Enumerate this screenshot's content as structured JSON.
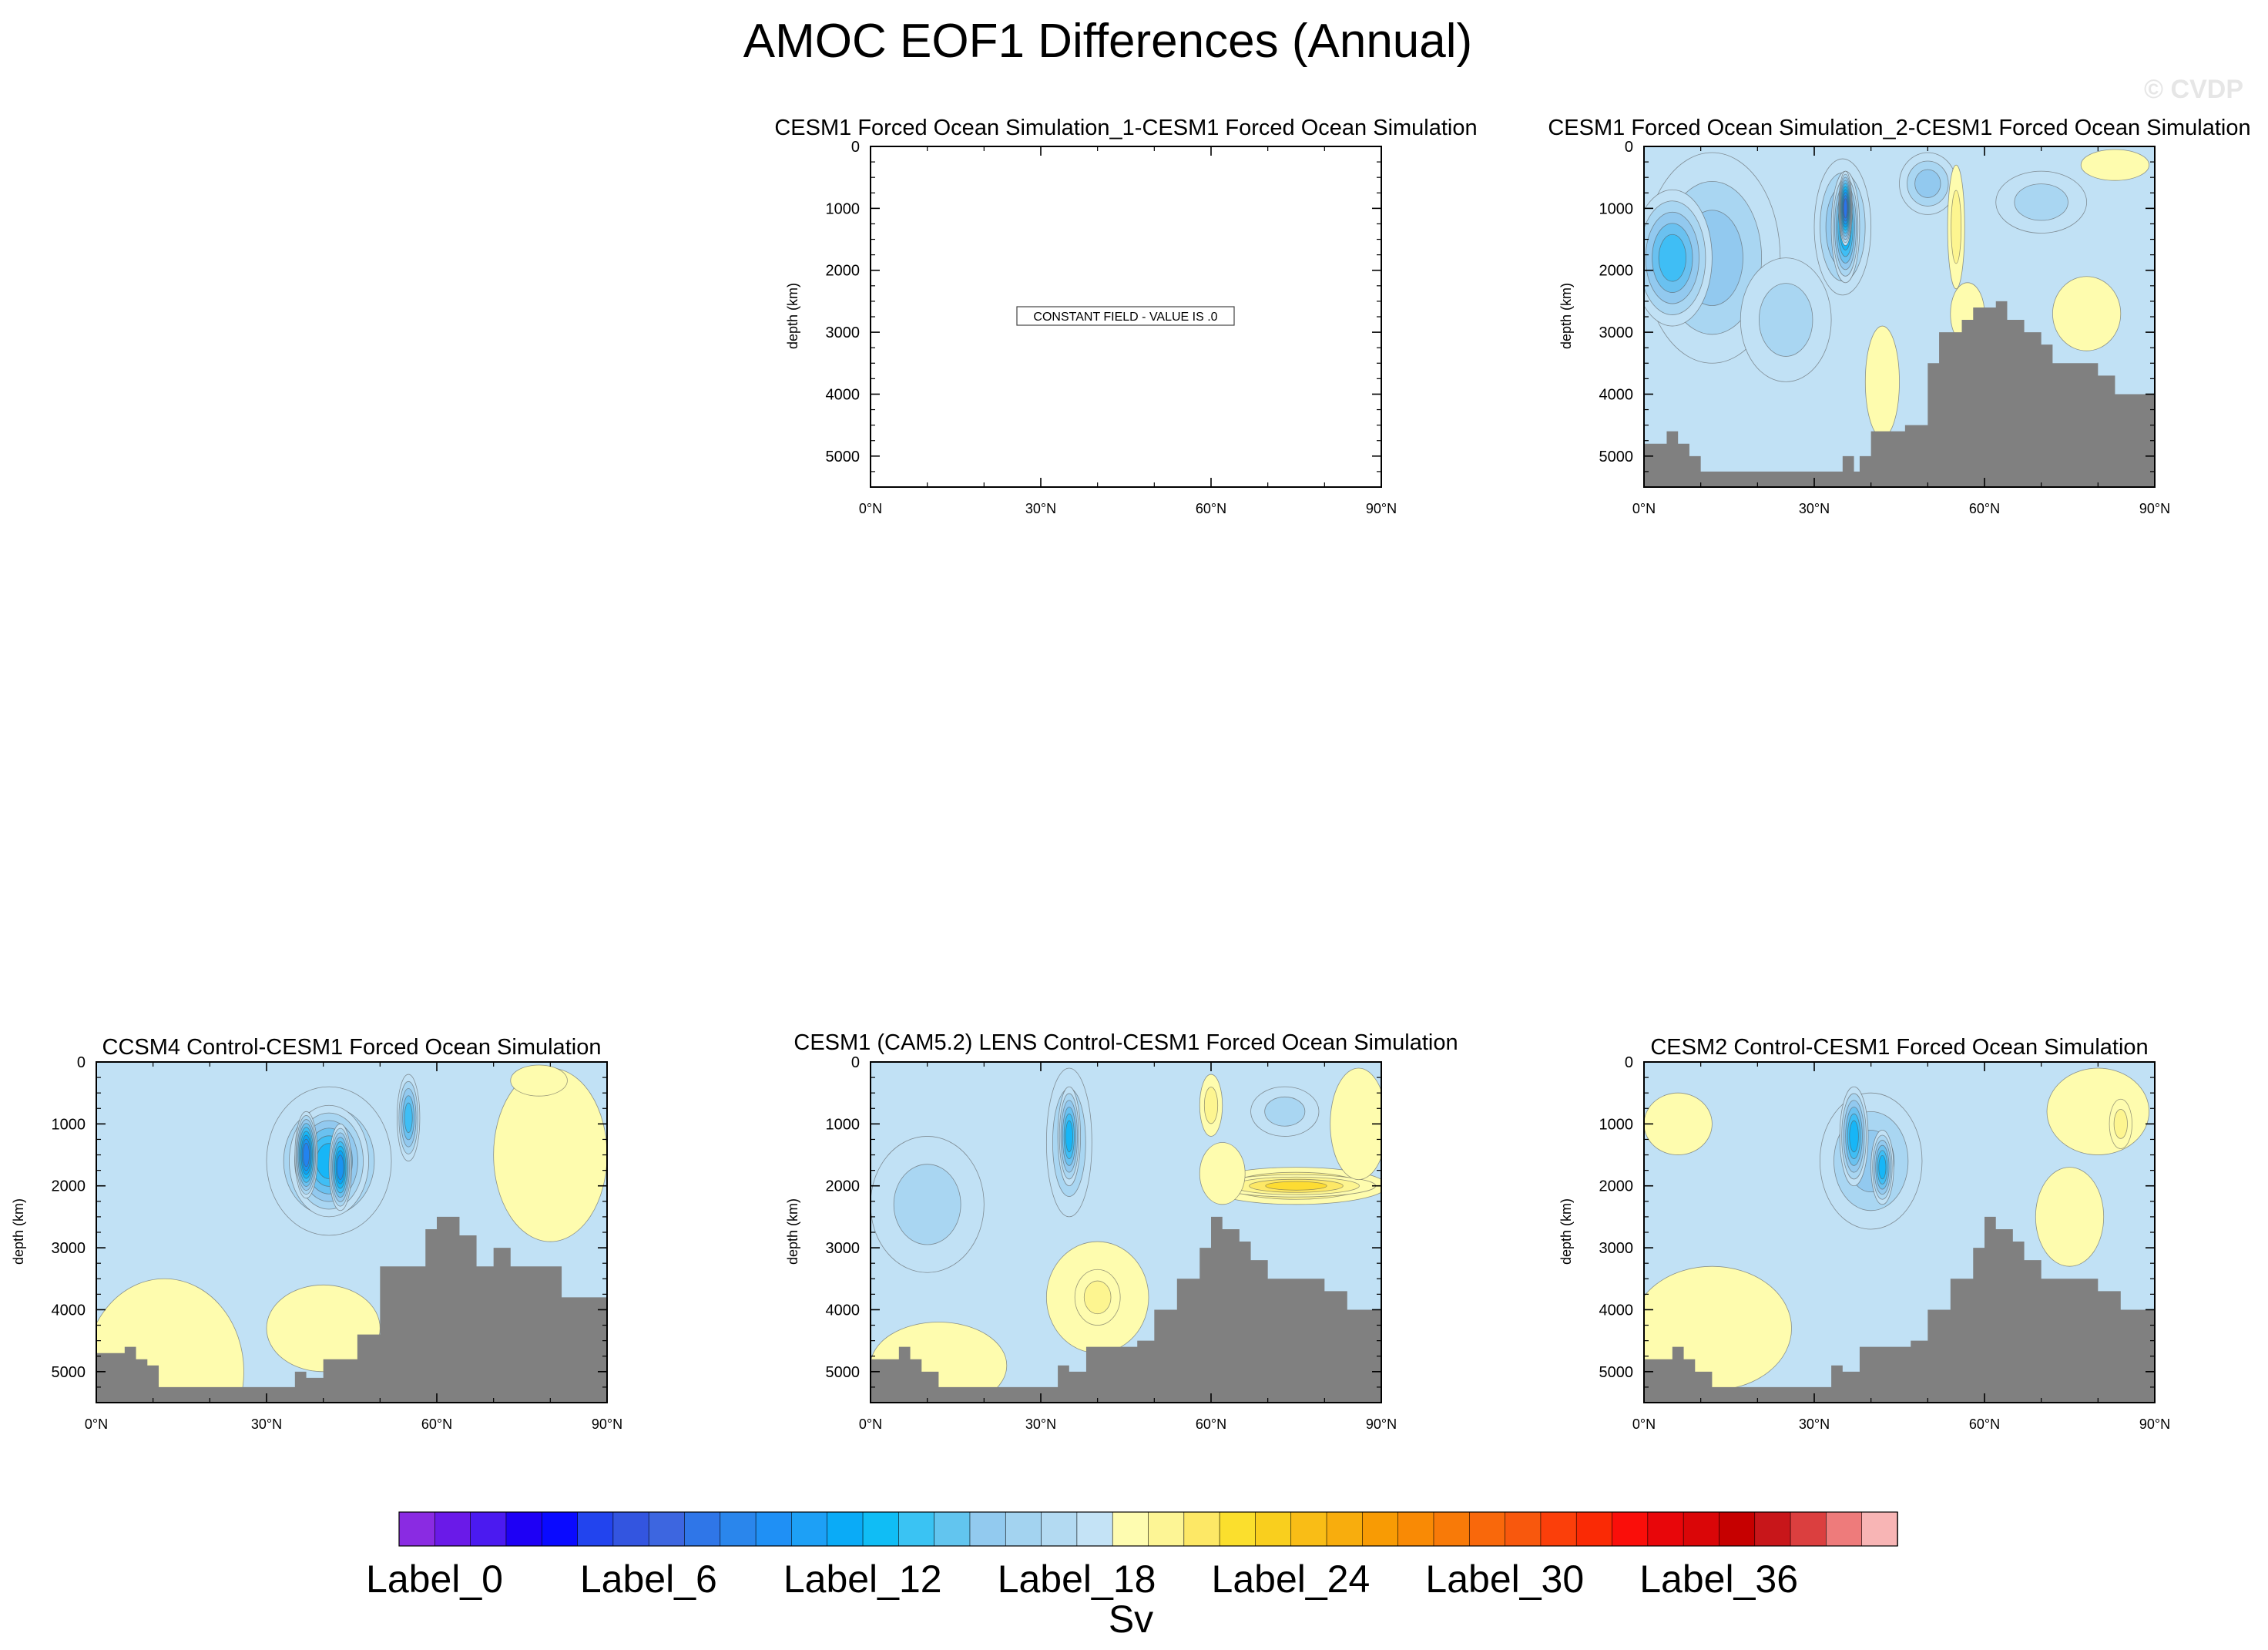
{
  "title": "AMOC EOF1 Differences (Annual)",
  "watermark": "© CVDP",
  "colors": {
    "land": "#808080",
    "negative_shades": [
      "#c1e1f5",
      "#a9d6f2",
      "#92c9ef",
      "#6ac1f0",
      "#3fbef5",
      "#17b6f7",
      "#0aa3f5",
      "#1994f2",
      "#2283ef",
      "#2a74ea",
      "#3465e0",
      "#3d58d8"
    ],
    "positive_shades": [
      "#fefcae",
      "#fdf590",
      "#fde866",
      "#fddc32",
      "#fbcb1d",
      "#f9bb14"
    ]
  },
  "chart_data": [
    {
      "type": "contour",
      "title": "CESM1 Forced Ocean Simulation_1-CESM1 Forced Ocean Simulation",
      "ylabel": "depth (km)",
      "xticks": [
        "0°N",
        "30°N",
        "60°N",
        "90°N"
      ],
      "yticks": [
        "0",
        "1000",
        "2000",
        "3000",
        "4000",
        "5000"
      ],
      "xlim": [
        0,
        90
      ],
      "ylim": [
        5500,
        0
      ],
      "constant_field": true,
      "constant_label": "CONSTANT FIELD - VALUE IS .0",
      "background_level": 0,
      "cells": [],
      "bathymetry": []
    },
    {
      "type": "contour",
      "title": "CESM1 Forced Ocean Simulation_2-CESM1 Forced Ocean Simulation",
      "ylabel": "depth (km)",
      "xticks": [
        "0°N",
        "30°N",
        "60°N",
        "90°N"
      ],
      "yticks": [
        "0",
        "1000",
        "2000",
        "3000",
        "4000",
        "5000"
      ],
      "xlim": [
        0,
        90
      ],
      "ylim": [
        5500,
        0
      ],
      "constant_field": false,
      "background_level": -1,
      "cells": [
        {
          "lat": 12,
          "depth": 1800,
          "rx": 12,
          "ry": 1700,
          "level": -3
        },
        {
          "lat": 5,
          "depth": 1800,
          "rx": 7,
          "ry": 1100,
          "level": -5
        },
        {
          "lat": 35,
          "depth": 1300,
          "rx": 5,
          "ry": 1100,
          "level": -4
        },
        {
          "lat": 35.5,
          "depth": 1300,
          "rx": 2.5,
          "ry": 900,
          "level": -7
        },
        {
          "lat": 35.5,
          "depth": 1000,
          "rx": 1.2,
          "ry": 600,
          "level": -10
        },
        {
          "lat": 25,
          "depth": 2800,
          "rx": 8,
          "ry": 1000,
          "level": -2
        },
        {
          "lat": 50,
          "depth": 600,
          "rx": 5,
          "ry": 500,
          "level": -3
        },
        {
          "lat": 70,
          "depth": 900,
          "rx": 8,
          "ry": 500,
          "level": -2
        },
        {
          "lat": 42,
          "depth": 3800,
          "rx": 3,
          "ry": 900,
          "level": 1
        },
        {
          "lat": 55,
          "depth": 1300,
          "rx": 1.5,
          "ry": 1000,
          "level": 2
        },
        {
          "lat": 57,
          "depth": 2700,
          "rx": 3,
          "ry": 500,
          "level": 1
        },
        {
          "lat": 83,
          "depth": 300,
          "rx": 6,
          "ry": 250,
          "level": 1
        },
        {
          "lat": 78,
          "depth": 2700,
          "rx": 6,
          "ry": 600,
          "level": 1
        }
      ],
      "bathymetry": [
        [
          0,
          4800
        ],
        [
          4,
          4600
        ],
        [
          6,
          4800
        ],
        [
          8,
          5000
        ],
        [
          10,
          5250
        ],
        [
          17,
          5250
        ],
        [
          24,
          5250
        ],
        [
          30,
          5250
        ],
        [
          35,
          5000
        ],
        [
          37,
          5250
        ],
        [
          38,
          5000
        ],
        [
          40,
          4600
        ],
        [
          42,
          4600
        ],
        [
          46,
          4500
        ],
        [
          50,
          3500
        ],
        [
          52,
          3000
        ],
        [
          55,
          3000
        ],
        [
          56,
          2800
        ],
        [
          58,
          2600
        ],
        [
          60,
          2600
        ],
        [
          62,
          2500
        ],
        [
          64,
          2800
        ],
        [
          67,
          3000
        ],
        [
          70,
          3200
        ],
        [
          72,
          3500
        ],
        [
          77,
          3500
        ],
        [
          80,
          3700
        ],
        [
          83,
          4000
        ],
        [
          90,
          4000
        ]
      ]
    },
    {
      "type": "contour",
      "title": "CCSM4 Control-CESM1 Forced Ocean Simulation",
      "ylabel": "depth (km)",
      "xticks": [
        "0°N",
        "30°N",
        "60°N",
        "90°N"
      ],
      "yticks": [
        "0",
        "1000",
        "2000",
        "3000",
        "4000",
        "5000"
      ],
      "xlim": [
        0,
        90
      ],
      "ylim": [
        5500,
        0
      ],
      "constant_field": false,
      "background_level": -1,
      "cells": [
        {
          "lat": 12,
          "depth": 5000,
          "rx": 14,
          "ry": 1500,
          "level": 1
        },
        {
          "lat": 40,
          "depth": 4300,
          "rx": 10,
          "ry": 700,
          "level": 1
        },
        {
          "lat": 80,
          "depth": 1500,
          "rx": 10,
          "ry": 1400,
          "level": 1
        },
        {
          "lat": 41,
          "depth": 1600,
          "rx": 11,
          "ry": 1200,
          "level": -3
        },
        {
          "lat": 41,
          "depth": 1600,
          "rx": 7,
          "ry": 900,
          "level": -6
        },
        {
          "lat": 37,
          "depth": 1500,
          "rx": 2,
          "ry": 700,
          "level": -9
        },
        {
          "lat": 43,
          "depth": 1700,
          "rx": 2,
          "ry": 700,
          "level": -8
        },
        {
          "lat": 55,
          "depth": 900,
          "rx": 2,
          "ry": 700,
          "level": -5
        },
        {
          "lat": 78,
          "depth": 300,
          "rx": 5,
          "ry": 250,
          "level": 1
        }
      ],
      "bathymetry": [
        [
          0,
          4700
        ],
        [
          5,
          4600
        ],
        [
          7,
          4800
        ],
        [
          9,
          4900
        ],
        [
          11,
          5250
        ],
        [
          17,
          5250
        ],
        [
          25,
          5250
        ],
        [
          33,
          5250
        ],
        [
          35,
          5000
        ],
        [
          37,
          5100
        ],
        [
          40,
          4800
        ],
        [
          43,
          4800
        ],
        [
          46,
          4400
        ],
        [
          50,
          3300
        ],
        [
          56,
          3300
        ],
        [
          58,
          2700
        ],
        [
          60,
          2500
        ],
        [
          64,
          2800
        ],
        [
          67,
          3300
        ],
        [
          70,
          3000
        ],
        [
          73,
          3300
        ],
        [
          78,
          3300
        ],
        [
          82,
          3800
        ],
        [
          90,
          3800
        ]
      ]
    },
    {
      "type": "contour",
      "title": "CESM1 (CAM5.2) LENS Control-CESM1 Forced Ocean Simulation",
      "ylabel": "depth (km)",
      "xticks": [
        "0°N",
        "30°N",
        "60°N",
        "90°N"
      ],
      "yticks": [
        "0",
        "1000",
        "2000",
        "3000",
        "4000",
        "5000"
      ],
      "xlim": [
        0,
        90
      ],
      "ylim": [
        5500,
        0
      ],
      "constant_field": false,
      "background_level": -1,
      "cells": [
        {
          "lat": 10,
          "depth": 2300,
          "rx": 10,
          "ry": 1100,
          "level": -2
        },
        {
          "lat": 35,
          "depth": 1300,
          "rx": 4,
          "ry": 1200,
          "level": -3
        },
        {
          "lat": 35,
          "depth": 1200,
          "rx": 2,
          "ry": 800,
          "level": -6
        },
        {
          "lat": 40,
          "depth": 3800,
          "rx": 9,
          "ry": 900,
          "level": 1
        },
        {
          "lat": 40,
          "depth": 3800,
          "rx": 4,
          "ry": 450,
          "level": 2
        },
        {
          "lat": 12,
          "depth": 4900,
          "rx": 12,
          "ry": 700,
          "level": 1
        },
        {
          "lat": 75,
          "depth": 2000,
          "rx": 16,
          "ry": 300,
          "level": 3
        },
        {
          "lat": 75,
          "depth": 2000,
          "rx": 14,
          "ry": 180,
          "level": 4
        },
        {
          "lat": 60,
          "depth": 700,
          "rx": 2,
          "ry": 500,
          "level": 2
        },
        {
          "lat": 62,
          "depth": 1800,
          "rx": 4,
          "ry": 500,
          "level": 1
        },
        {
          "lat": 86,
          "depth": 1000,
          "rx": 5,
          "ry": 900,
          "level": 1
        },
        {
          "lat": 73,
          "depth": 800,
          "rx": 6,
          "ry": 400,
          "level": -2
        }
      ],
      "bathymetry": [
        [
          0,
          4800
        ],
        [
          5,
          4600
        ],
        [
          7,
          4800
        ],
        [
          9,
          5000
        ],
        [
          12,
          5250
        ],
        [
          20,
          5250
        ],
        [
          28,
          5250
        ],
        [
          33,
          4900
        ],
        [
          35,
          5000
        ],
        [
          38,
          4600
        ],
        [
          42,
          4600
        ],
        [
          47,
          4500
        ],
        [
          50,
          4000
        ],
        [
          54,
          3500
        ],
        [
          58,
          3000
        ],
        [
          60,
          2500
        ],
        [
          62,
          2700
        ],
        [
          65,
          2900
        ],
        [
          67,
          3200
        ],
        [
          70,
          3500
        ],
        [
          77,
          3500
        ],
        [
          80,
          3700
        ],
        [
          84,
          4000
        ],
        [
          90,
          4000
        ]
      ]
    },
    {
      "type": "contour",
      "title": "CESM2 Control-CESM1 Forced Ocean Simulation",
      "ylabel": "depth (km)",
      "xticks": [
        "0°N",
        "30°N",
        "60°N",
        "90°N"
      ],
      "yticks": [
        "0",
        "1000",
        "2000",
        "3000",
        "4000",
        "5000"
      ],
      "xlim": [
        0,
        90
      ],
      "ylim": [
        5500,
        0
      ],
      "constant_field": false,
      "background_level": -1,
      "cells": [
        {
          "lat": 12,
          "depth": 4300,
          "rx": 14,
          "ry": 1000,
          "level": 1
        },
        {
          "lat": 6,
          "depth": 1000,
          "rx": 6,
          "ry": 500,
          "level": 1
        },
        {
          "lat": 40,
          "depth": 1600,
          "rx": 9,
          "ry": 1100,
          "level": -3
        },
        {
          "lat": 37,
          "depth": 1200,
          "rx": 2.5,
          "ry": 800,
          "level": -6
        },
        {
          "lat": 42,
          "depth": 1700,
          "rx": 2,
          "ry": 600,
          "level": -6
        },
        {
          "lat": 80,
          "depth": 800,
          "rx": 9,
          "ry": 700,
          "level": 1
        },
        {
          "lat": 84,
          "depth": 1000,
          "rx": 2,
          "ry": 400,
          "level": 2
        },
        {
          "lat": 75,
          "depth": 2500,
          "rx": 6,
          "ry": 800,
          "level": 1
        }
      ],
      "bathymetry": [
        [
          0,
          4800
        ],
        [
          5,
          4600
        ],
        [
          7,
          4800
        ],
        [
          9,
          5000
        ],
        [
          12,
          5250
        ],
        [
          20,
          5250
        ],
        [
          28,
          5250
        ],
        [
          33,
          4900
        ],
        [
          35,
          5000
        ],
        [
          38,
          4600
        ],
        [
          42,
          4600
        ],
        [
          47,
          4500
        ],
        [
          50,
          4000
        ],
        [
          54,
          3500
        ],
        [
          58,
          3000
        ],
        [
          60,
          2500
        ],
        [
          62,
          2700
        ],
        [
          65,
          2900
        ],
        [
          67,
          3200
        ],
        [
          70,
          3500
        ],
        [
          77,
          3500
        ],
        [
          80,
          3700
        ],
        [
          84,
          4000
        ],
        [
          90,
          4000
        ]
      ]
    }
  ],
  "colorbar": {
    "colors": [
      "#8a2be2",
      "#6a1ae8",
      "#4b1af0",
      "#1e00f5",
      "#0a0aff",
      "#2244ee",
      "#3355e0",
      "#3d66e0",
      "#2f76e8",
      "#2a86ec",
      "#1f90f5",
      "#1da0f6",
      "#0aabf7",
      "#10bdf5",
      "#3ac3f3",
      "#62c5ef",
      "#92caef",
      "#a3d3f0",
      "#b3daf2",
      "#c4e3f6",
      "#fefcb0",
      "#fdf595",
      "#fde866",
      "#fbdf2d",
      "#f9cf1e",
      "#f9bd16",
      "#f8ad0d",
      "#f89b04",
      "#f98a05",
      "#f87a08",
      "#f9680b",
      "#f8580d",
      "#fb3f0a",
      "#fa2a05",
      "#fa0e0a",
      "#e8060a",
      "#da0608",
      "#c60000",
      "#c8161a",
      "#db3f3f",
      "#ee7b7b",
      "#f8b5b5"
    ],
    "labels": [
      "Label_0",
      "Label_6",
      "Label_12",
      "Label_18",
      "Label_24",
      "Label_30",
      "Label_36"
    ],
    "label_indices": [
      0,
      6,
      12,
      18,
      24,
      30,
      36
    ],
    "units": "Sv"
  }
}
